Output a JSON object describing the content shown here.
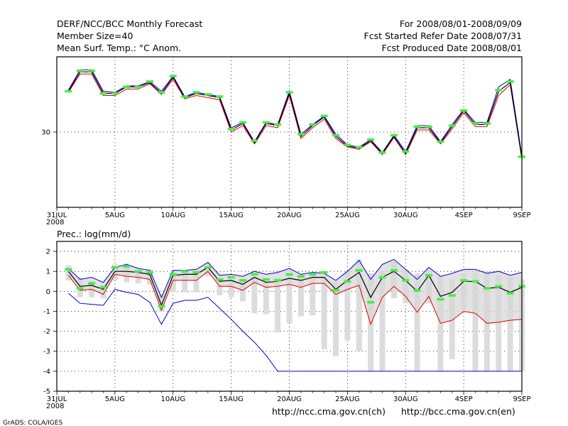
{
  "header": {
    "left": [
      "DERF/NCC/BCC Monthly Forecast",
      "Member Size=40",
      "Mean Surf. Temp.: °C Anom."
    ],
    "right": [
      "For 2008/08/01-2008/09/09",
      "Fcst Started Refer Date 2008/07/31",
      "Fcst Produced Date 2008/08/01"
    ]
  },
  "footer": {
    "grads": "GrADS: COLA/IGES",
    "url_ch": "http://ncc.cma.gov.cn(ch)",
    "url_en": "http://bcc.cma.gov.cn(en)"
  },
  "colors": {
    "mean": "#000000",
    "upper": "#0000cc",
    "lower": "#dd0000",
    "obs": "#44ee44",
    "spread": "#dcdcdc",
    "shade": "#d6d6d6"
  },
  "chart_data": [
    {
      "type": "line",
      "title": "Mean Surf. Temp.: °C Anom.",
      "xlabels": [
        "31JUL",
        "5AUG",
        "10AUG",
        "15AUG",
        "20AUG",
        "25AUG",
        "30AUG",
        "4SEP",
        "9SEP"
      ],
      "xlabel_year": "2008",
      "x_range": [
        0,
        40
      ],
      "ylim": [
        26.5,
        33.5
      ],
      "yticks": [
        30
      ],
      "days": [
        1,
        2,
        3,
        4,
        5,
        6,
        7,
        8,
        9,
        10,
        11,
        12,
        13,
        14,
        15,
        16,
        17,
        18,
        19,
        20,
        21,
        22,
        23,
        24,
        25,
        26,
        27,
        28,
        29,
        30,
        31,
        32,
        33,
        34,
        35,
        36,
        37,
        38,
        39,
        40
      ],
      "series": [
        {
          "name": "mean",
          "values": [
            31.9,
            32.8,
            32.8,
            31.8,
            31.8,
            32.1,
            32.1,
            32.3,
            31.8,
            32.55,
            31.6,
            31.8,
            31.7,
            31.6,
            30.1,
            30.4,
            29.5,
            30.4,
            30.3,
            31.8,
            29.8,
            30.3,
            30.7,
            29.8,
            29.35,
            29.25,
            29.6,
            29.0,
            29.8,
            29.0,
            30.2,
            30.2,
            29.5,
            30.25,
            31.0,
            30.35,
            30.35,
            31.9,
            32.3,
            28.8
          ]
        },
        {
          "name": "upper",
          "values": [
            31.95,
            32.9,
            32.9,
            31.9,
            31.85,
            32.15,
            32.15,
            32.35,
            31.9,
            32.6,
            31.65,
            31.85,
            31.75,
            31.65,
            30.2,
            30.45,
            29.55,
            30.45,
            30.35,
            31.9,
            29.9,
            30.35,
            30.75,
            29.9,
            29.4,
            29.3,
            29.65,
            29.05,
            29.85,
            29.1,
            30.3,
            30.3,
            29.55,
            30.35,
            31.05,
            30.45,
            30.45,
            32.1,
            32.45,
            28.9
          ]
        },
        {
          "name": "lower",
          "values": [
            31.85,
            32.7,
            32.7,
            31.7,
            31.7,
            32.0,
            32.0,
            32.25,
            31.75,
            32.45,
            31.55,
            31.7,
            31.6,
            31.5,
            30.0,
            30.3,
            29.45,
            30.3,
            30.2,
            31.7,
            29.7,
            30.2,
            30.6,
            29.7,
            29.3,
            29.2,
            29.55,
            28.95,
            29.75,
            28.95,
            30.1,
            30.1,
            29.45,
            30.15,
            30.9,
            30.25,
            30.25,
            31.7,
            32.2,
            28.75
          ]
        },
        {
          "name": "obs",
          "values": [
            31.9,
            32.85,
            32.85,
            31.8,
            31.8,
            32.1,
            32.1,
            32.35,
            31.85,
            32.6,
            31.65,
            31.85,
            31.75,
            31.65,
            30.15,
            30.45,
            29.6,
            30.45,
            30.35,
            31.85,
            29.9,
            30.35,
            30.75,
            29.85,
            29.4,
            29.3,
            29.65,
            29.05,
            29.85,
            29.1,
            30.25,
            30.25,
            29.55,
            30.3,
            31.0,
            30.4,
            30.4,
            31.95,
            32.35,
            28.85
          ]
        }
      ]
    },
    {
      "type": "line",
      "title": "Prec.: log(mm/d)",
      "xlabels": [
        "31JUL",
        "5AUG",
        "10AUG",
        "15AUG",
        "20AUG",
        "25AUG",
        "30AUG",
        "4SEP",
        "9SEP"
      ],
      "xlabel_year": "2008",
      "x_range": [
        0,
        40
      ],
      "ylim": [
        -5,
        2.5
      ],
      "yticks": [
        2,
        1,
        0,
        -1,
        -2,
        -3,
        -4,
        -5
      ],
      "days": [
        1,
        2,
        3,
        4,
        5,
        6,
        7,
        8,
        9,
        10,
        11,
        12,
        13,
        14,
        15,
        16,
        17,
        18,
        19,
        20,
        21,
        22,
        23,
        24,
        25,
        26,
        27,
        28,
        29,
        30,
        31,
        32,
        33,
        34,
        35,
        36,
        37,
        38,
        39,
        40
      ],
      "series": [
        {
          "name": "mean",
          "values": [
            1.0,
            0.25,
            0.3,
            0.1,
            1.0,
            1.0,
            0.95,
            0.85,
            -0.7,
            0.8,
            0.85,
            0.85,
            1.2,
            0.5,
            0.55,
            0.35,
            0.7,
            0.45,
            0.5,
            0.65,
            0.55,
            0.7,
            0.7,
            0.1,
            0.55,
            0.95,
            -0.3,
            0.7,
            1.0,
            0.55,
            0.0,
            0.8,
            -0.25,
            -0.05,
            0.5,
            0.5,
            0.15,
            0.2,
            -0.05,
            0.2
          ]
        },
        {
          "name": "upper",
          "values": [
            1.15,
            0.6,
            0.7,
            0.45,
            1.2,
            1.35,
            1.15,
            1.05,
            -0.3,
            1.05,
            1.05,
            1.1,
            1.45,
            0.8,
            0.85,
            0.75,
            1.0,
            0.85,
            0.95,
            1.15,
            0.85,
            0.95,
            0.9,
            0.55,
            1.0,
            1.55,
            0.6,
            1.35,
            1.6,
            1.1,
            0.6,
            1.2,
            0.75,
            0.9,
            1.1,
            1.1,
            0.9,
            1.0,
            0.8,
            0.95
          ]
        },
        {
          "name": "lower",
          "values": [
            0.8,
            0.05,
            0.1,
            -0.15,
            0.85,
            0.75,
            0.7,
            0.6,
            -0.95,
            0.55,
            0.55,
            0.55,
            1.0,
            0.25,
            0.25,
            0.05,
            0.45,
            0.2,
            0.25,
            0.35,
            0.2,
            0.4,
            0.4,
            -0.15,
            0.1,
            0.3,
            -1.65,
            -0.3,
            0.25,
            -0.25,
            -1.05,
            -0.25,
            -1.6,
            -1.45,
            -1.0,
            -1.1,
            -1.6,
            -1.55,
            -1.45,
            -1.4
          ]
        },
        {
          "name": "bottom",
          "values": [
            -0.1,
            -0.6,
            -0.65,
            -0.7,
            0.1,
            -0.05,
            -0.15,
            -0.55,
            -1.65,
            -0.6,
            -0.45,
            -0.45,
            -0.3,
            -0.85,
            -1.4,
            -2.0,
            -2.55,
            -3.2,
            -4.0,
            -4.0,
            -4.0,
            -4.0,
            -4.0,
            -4.0,
            -4.0,
            -4.0,
            -4.0,
            -4.0,
            -4.0,
            -4.0,
            -4.0,
            -4.0,
            -4.0,
            -4.0,
            -4.0,
            -4.0,
            -4.0,
            -4.0,
            -4.0,
            -4.0
          ]
        },
        {
          "name": "obs",
          "values": [
            1.1,
            0.15,
            0.4,
            0.2,
            1.2,
            1.25,
            1.0,
            0.95,
            -0.75,
            0.85,
            1.0,
            0.95,
            1.2,
            0.6,
            0.7,
            0.55,
            0.85,
            0.6,
            0.55,
            0.85,
            0.75,
            0.85,
            0.95,
            0.05,
            0.5,
            1.05,
            -0.55,
            0.7,
            1.05,
            0.55,
            0.05,
            0.8,
            -0.4,
            -0.2,
            0.55,
            0.5,
            0.15,
            0.25,
            -0.1,
            0.25
          ]
        },
        {
          "name": "spread_top",
          "values": [
            1.3,
            0.7,
            0.5,
            0.3,
            1.35,
            1.4,
            1.1,
            1.1,
            -0.15,
            1.05,
            1.05,
            1.05,
            1.4,
            0.6,
            0.6,
            0.6,
            0.7,
            0.6,
            0.7,
            0.9,
            0.7,
            0.9,
            0.75,
            0.5,
            1.05,
            1.6,
            0.9,
            1.05,
            1.5,
            1.1,
            0.9,
            1.05,
            0.75,
            0.6,
            0.9,
            0.9,
            1.0,
            0.8,
            0.7,
            0.6
          ]
        },
        {
          "name": "spread_bottom",
          "values": [
            0.55,
            -0.3,
            -0.3,
            -0.35,
            0.55,
            0.45,
            0.4,
            0.35,
            -1.0,
            -0.05,
            -0.05,
            -0.05,
            0.75,
            -0.2,
            -0.3,
            -0.5,
            -1.1,
            -1.15,
            -2.05,
            -1.6,
            -1.25,
            -1.2,
            -2.9,
            -3.25,
            -2.45,
            -3.0,
            -4.0,
            -4.0,
            -0.35,
            -0.6,
            -4.0,
            -0.6,
            -4.0,
            -3.4,
            -0.9,
            -4.0,
            -4.0,
            -4.0,
            -4.0,
            -4.0
          ]
        }
      ]
    }
  ]
}
